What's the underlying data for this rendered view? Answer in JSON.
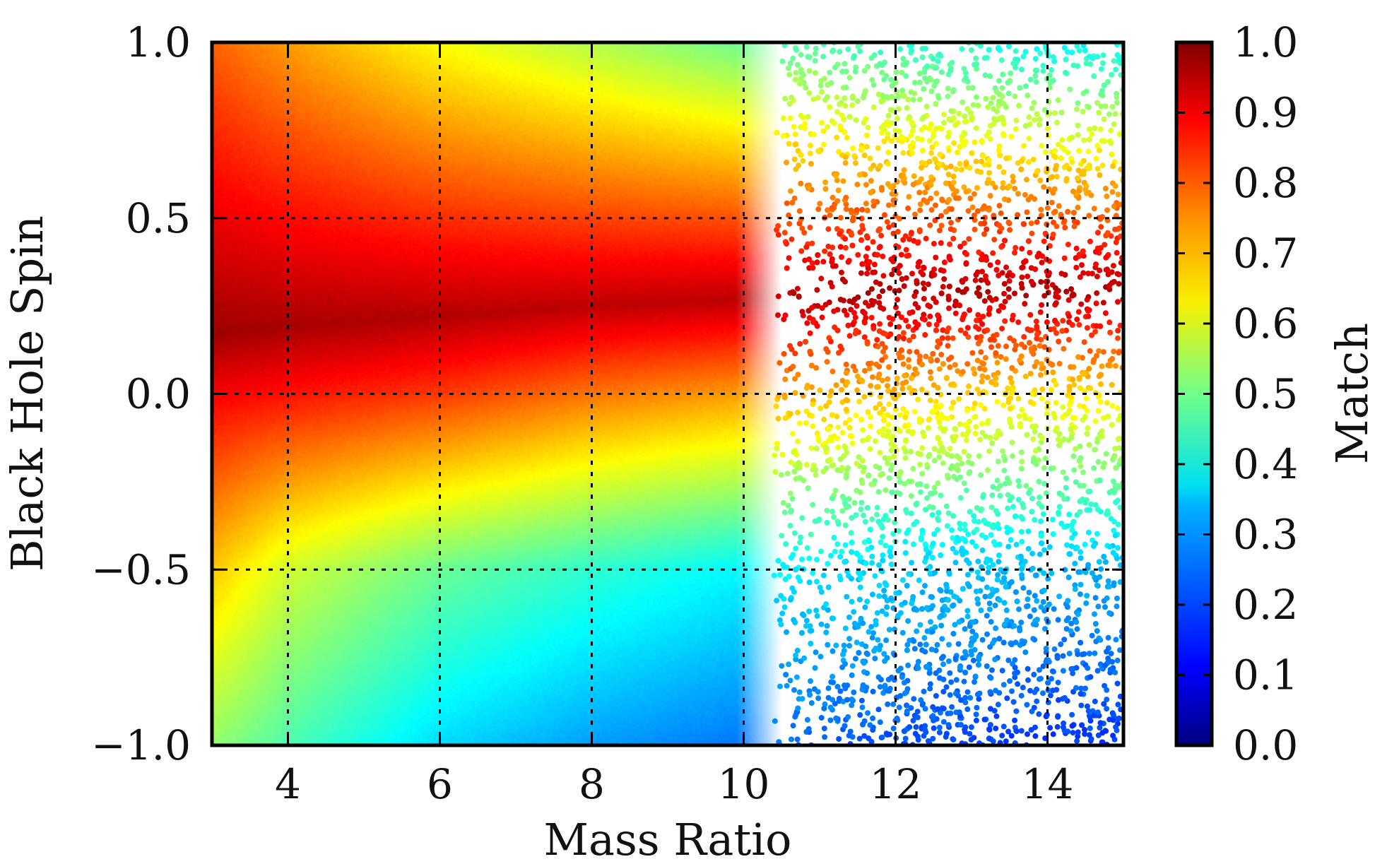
{
  "chart_data": {
    "type": "scatter",
    "title": "",
    "xlabel": "Mass Ratio",
    "ylabel": "Black Hole Spin",
    "xlim": [
      3,
      15
    ],
    "ylim": [
      -1.0,
      1.0
    ],
    "xticks": [
      4,
      6,
      8,
      10,
      12,
      14
    ],
    "xtick_labels": [
      "4",
      "6",
      "8",
      "10",
      "12",
      "14"
    ],
    "yticks": [
      -1.0,
      -0.5,
      0.0,
      0.5,
      1.0
    ],
    "ytick_labels": [
      "−1.0",
      "−0.5",
      "0.0",
      "0.5",
      "1.0"
    ],
    "grid": true,
    "grid_style": "dotted",
    "colorbar": {
      "label": "Match",
      "range": [
        0.0,
        1.0
      ],
      "ticks": [
        0.0,
        0.1,
        0.2,
        0.3,
        0.4,
        0.5,
        0.6,
        0.7,
        0.8,
        0.9,
        1.0
      ],
      "tick_labels": [
        "0.0",
        "0.1",
        "0.2",
        "0.3",
        "0.4",
        "0.5",
        "0.6",
        "0.7",
        "0.8",
        "0.9",
        "1.0"
      ],
      "colormap": "jet"
    },
    "sampling": {
      "dense_region_max_mass_ratio": 10.5,
      "sparse_region_min_mass_ratio": 11,
      "sparse_region_max_mass_ratio": 15
    },
    "match_profile": [
      {
        "mass_ratio": 3,
        "spin_at_peak": 0.17,
        "peak_match": 0.97,
        "match_at_spin_1": 0.78,
        "match_at_spin_0": 0.88,
        "match_at_spin_neg_0_5": 0.68,
        "match_at_spin_neg_1": 0.52
      },
      {
        "mass_ratio": 4,
        "spin_at_peak": 0.19,
        "peak_match": 0.96,
        "match_at_spin_1": 0.72,
        "match_at_spin_0": 0.86,
        "match_at_spin_neg_0_5": 0.58,
        "match_at_spin_neg_1": 0.45
      },
      {
        "mass_ratio": 6,
        "spin_at_peak": 0.22,
        "peak_match": 0.95,
        "match_at_spin_1": 0.62,
        "match_at_spin_0": 0.82,
        "match_at_spin_neg_0_5": 0.48,
        "match_at_spin_neg_1": 0.34
      },
      {
        "mass_ratio": 8,
        "spin_at_peak": 0.25,
        "peak_match": 0.94,
        "match_at_spin_1": 0.55,
        "match_at_spin_0": 0.76,
        "match_at_spin_neg_0_5": 0.42,
        "match_at_spin_neg_1": 0.28
      },
      {
        "mass_ratio": 10,
        "spin_at_peak": 0.27,
        "peak_match": 0.94,
        "match_at_spin_1": 0.48,
        "match_at_spin_0": 0.72,
        "match_at_spin_neg_0_5": 0.37,
        "match_at_spin_neg_1": 0.24
      },
      {
        "mass_ratio": 12,
        "spin_at_peak": 0.29,
        "peak_match": 0.95,
        "match_at_spin_1": 0.42,
        "match_at_spin_0": 0.68,
        "match_at_spin_neg_0_5": 0.33,
        "match_at_spin_neg_1": 0.2
      },
      {
        "mass_ratio": 14,
        "spin_at_peak": 0.3,
        "peak_match": 0.95,
        "match_at_spin_1": 0.38,
        "match_at_spin_0": 0.65,
        "match_at_spin_neg_0_5": 0.3,
        "match_at_spin_neg_1": 0.18
      }
    ]
  }
}
